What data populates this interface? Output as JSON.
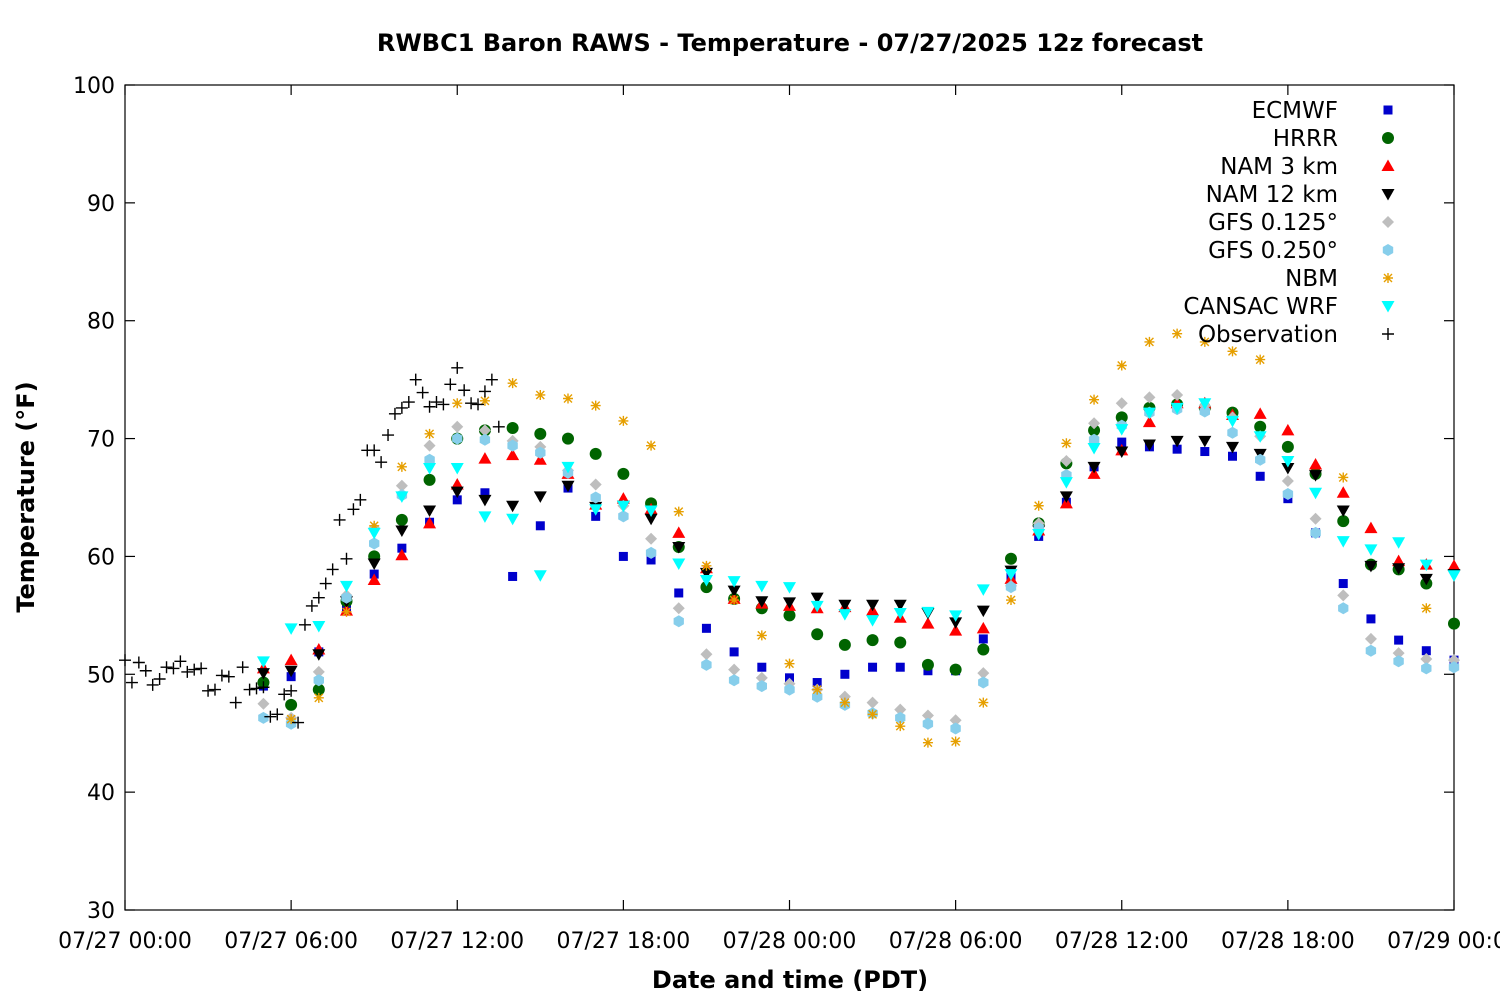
{
  "chart_data": {
    "type": "scatter",
    "title": "RWBC1 Baron RAWS - Temperature - 07/27/2025 12z forecast",
    "xlabel": "Date and time (PDT)",
    "ylabel": "Temperature (°F)",
    "ylim": [
      30,
      100
    ],
    "xlim_hours": [
      0,
      48
    ],
    "x_unit": "hours since 07/27 00:00 PDT",
    "yticks": [
      30,
      40,
      50,
      60,
      70,
      80,
      90,
      100
    ],
    "xticks": [
      {
        "h": 0,
        "label": "07/27 00:00"
      },
      {
        "h": 6,
        "label": "07/27 06:00"
      },
      {
        "h": 12,
        "label": "07/27 12:00"
      },
      {
        "h": 18,
        "label": "07/27 18:00"
      },
      {
        "h": 24,
        "label": "07/28 00:00"
      },
      {
        "h": 30,
        "label": "07/28 06:00"
      },
      {
        "h": 36,
        "label": "07/28 12:00"
      },
      {
        "h": 42,
        "label": "07/28 18:00"
      },
      {
        "h": 48,
        "label": "07/29 00:00"
      }
    ],
    "grid": false,
    "legend_position": "top-right",
    "series": [
      {
        "name": "ECMWF",
        "marker": "square",
        "color": "#0000cc",
        "x": [
          5,
          6,
          7,
          8,
          9,
          10,
          11,
          12,
          13,
          14,
          15,
          16,
          17,
          18,
          19,
          20,
          21,
          22,
          23,
          24,
          25,
          26,
          27,
          28,
          29,
          30,
          31,
          32,
          33,
          34,
          35,
          36,
          37,
          38,
          39,
          40,
          41,
          42,
          43,
          44,
          45,
          46,
          47,
          48
        ],
        "y": [
          49.0,
          49.8,
          51.9,
          55.7,
          58.5,
          60.7,
          62.9,
          64.8,
          65.4,
          58.3,
          62.6,
          65.8,
          63.4,
          60.0,
          59.7,
          56.9,
          53.9,
          51.9,
          50.6,
          49.7,
          49.3,
          50.0,
          50.6,
          50.6,
          50.3,
          50.3,
          53.0,
          58.3,
          61.7,
          64.6,
          67.6,
          69.7,
          69.3,
          69.1,
          68.9,
          68.5,
          66.8,
          64.9,
          62.0,
          57.7,
          54.7,
          52.9,
          52.0,
          51.2
        ]
      },
      {
        "name": "HRRR",
        "marker": "circle",
        "color": "#006400",
        "x": [
          5,
          6,
          7,
          8,
          9,
          10,
          11,
          12,
          13,
          14,
          15,
          16,
          17,
          18,
          19,
          20,
          21,
          22,
          23,
          24,
          25,
          26,
          27,
          28,
          29,
          30,
          31,
          32,
          33,
          34,
          35,
          36,
          37,
          38,
          39,
          40,
          41,
          42,
          43,
          44,
          45,
          46,
          47,
          48
        ],
        "y": [
          49.3,
          47.4,
          48.7,
          56.2,
          60.0,
          63.1,
          66.5,
          70.0,
          70.7,
          70.9,
          70.4,
          70.0,
          68.7,
          67.0,
          64.5,
          60.8,
          57.4,
          56.4,
          55.6,
          55.0,
          53.4,
          52.5,
          52.9,
          52.7,
          50.8,
          50.4,
          52.1,
          59.8,
          62.8,
          67.9,
          70.7,
          71.8,
          72.6,
          72.9,
          72.6,
          72.2,
          71.0,
          69.3,
          67.0,
          63.0,
          59.3,
          58.9,
          57.7,
          54.3
        ]
      },
      {
        "name": "NAM 3 km",
        "marker": "triangle-up",
        "color": "#ff0000",
        "x": [
          5,
          6,
          7,
          8,
          9,
          10,
          11,
          12,
          13,
          14,
          15,
          16,
          17,
          18,
          19,
          20,
          21,
          22,
          23,
          24,
          25,
          26,
          27,
          28,
          29,
          30,
          31,
          32,
          33,
          34,
          35,
          36,
          37,
          38,
          39,
          40,
          41,
          42,
          43,
          44,
          45,
          46,
          47,
          48
        ],
        "y": [
          50.5,
          51.2,
          52.1,
          55.4,
          58.0,
          60.1,
          62.8,
          66.1,
          68.3,
          68.6,
          68.2,
          67.0,
          64.4,
          64.9,
          64.0,
          62.0,
          59.0,
          56.4,
          56.0,
          55.8,
          55.6,
          55.7,
          55.4,
          54.8,
          54.3,
          53.7,
          53.9,
          58.1,
          62.2,
          64.5,
          67.0,
          69.0,
          71.4,
          73.0,
          73.0,
          72.0,
          72.1,
          70.7,
          67.8,
          65.4,
          62.4,
          59.6,
          59.3,
          59.2
        ]
      },
      {
        "name": "NAM 12 km",
        "marker": "triangle-down",
        "color": "#000000",
        "x": [
          5,
          6,
          7,
          8,
          9,
          10,
          11,
          12,
          13,
          14,
          15,
          16,
          17,
          18,
          19,
          20,
          21,
          22,
          23,
          24,
          25,
          26,
          27,
          28,
          29,
          30,
          31,
          32,
          33,
          34,
          35,
          36,
          37,
          38,
          39,
          40,
          41,
          42,
          43,
          44,
          45,
          46,
          47,
          48
        ],
        "y": [
          50.1,
          50.3,
          51.7,
          56.2,
          59.4,
          62.2,
          63.9,
          65.5,
          64.8,
          64.3,
          65.1,
          66.0,
          64.2,
          64.3,
          63.2,
          60.8,
          58.6,
          57.1,
          56.2,
          56.1,
          56.5,
          55.9,
          55.9,
          55.9,
          55.2,
          54.4,
          55.4,
          58.8,
          62.2,
          65.1,
          67.6,
          68.9,
          69.5,
          69.8,
          69.8,
          69.3,
          68.7,
          67.5,
          66.9,
          63.9,
          59.2,
          59.0,
          58.1,
          58.5
        ]
      },
      {
        "name": "GFS 0.125°",
        "marker": "diamond",
        "color": "#bebebe",
        "x": [
          5,
          6,
          7,
          8,
          9,
          10,
          11,
          12,
          13,
          14,
          15,
          16,
          17,
          18,
          19,
          20,
          21,
          22,
          23,
          24,
          25,
          26,
          27,
          28,
          29,
          30,
          31,
          32,
          33,
          34,
          35,
          36,
          37,
          38,
          39,
          40,
          41,
          42,
          43,
          44,
          45,
          46,
          47,
          48
        ],
        "y": [
          47.5,
          46.3,
          50.2,
          56.7,
          62.4,
          66.0,
          69.4,
          71.0,
          70.7,
          69.8,
          69.3,
          67.3,
          66.1,
          64.3,
          61.5,
          55.6,
          51.7,
          50.4,
          49.7,
          49.2,
          48.7,
          48.1,
          47.6,
          47.0,
          46.5,
          46.1,
          50.1,
          57.5,
          62.8,
          68.1,
          71.3,
          73.0,
          73.5,
          73.7,
          72.8,
          71.8,
          70.2,
          66.4,
          63.2,
          56.7,
          53.0,
          51.8,
          51.3,
          51.2
        ]
      },
      {
        "name": "GFS 0.250°",
        "marker": "hexagon",
        "color": "#87ceeb",
        "x": [
          5,
          6,
          7,
          8,
          9,
          10,
          11,
          12,
          13,
          14,
          15,
          16,
          17,
          18,
          19,
          20,
          21,
          22,
          23,
          24,
          25,
          26,
          27,
          28,
          29,
          30,
          31,
          32,
          33,
          34,
          35,
          36,
          37,
          38,
          39,
          40,
          41,
          42,
          43,
          44,
          45,
          46,
          47,
          48
        ],
        "y": [
          46.3,
          45.8,
          49.5,
          56.5,
          61.1,
          65.2,
          68.2,
          70.0,
          69.9,
          69.4,
          68.8,
          67.1,
          65.0,
          63.4,
          60.3,
          54.5,
          50.8,
          49.5,
          49.0,
          48.7,
          48.1,
          47.4,
          46.7,
          46.3,
          45.8,
          45.4,
          49.3,
          57.4,
          62.4,
          66.9,
          69.9,
          71.1,
          72.2,
          72.5,
          72.3,
          70.5,
          68.2,
          65.3,
          62.0,
          55.6,
          52.0,
          51.1,
          50.5,
          50.6
        ]
      },
      {
        "name": "NBM",
        "marker": "star",
        "color": "#e69f00",
        "x": [
          6,
          7,
          8,
          9,
          10,
          11,
          12,
          13,
          14,
          15,
          16,
          17,
          18,
          19,
          20,
          21,
          22,
          23,
          24,
          25,
          26,
          27,
          28,
          29,
          30,
          31,
          32,
          33,
          34,
          35,
          36,
          37,
          38,
          39,
          40,
          41,
          42,
          43,
          44,
          45,
          46,
          47,
          48
        ],
        "y": [
          46.2,
          48.0,
          55.3,
          62.6,
          67.6,
          70.4,
          73.0,
          73.2,
          74.7,
          73.7,
          73.4,
          72.8,
          71.5,
          69.4,
          63.8,
          59.2,
          56.3,
          53.3,
          50.9,
          48.7,
          47.6,
          46.6,
          45.6,
          44.2,
          44.3,
          47.6,
          56.3,
          64.3,
          69.6,
          73.3,
          76.2,
          78.2,
          78.9,
          78.2,
          77.4,
          76.7,
          null,
          null,
          66.7,
          null,
          null,
          55.6,
          null
        ]
      },
      {
        "name": "CANSAC WRF",
        "marker": "triangle-down",
        "color": "#00ffff",
        "x": [
          5,
          6,
          7,
          8,
          9,
          10,
          11,
          12,
          13,
          14,
          15,
          16,
          17,
          18,
          19,
          20,
          21,
          22,
          23,
          24,
          25,
          26,
          27,
          28,
          29,
          30,
          31,
          32,
          33,
          34,
          35,
          36,
          37,
          38,
          39,
          40,
          41,
          42,
          43,
          44,
          45,
          46,
          47,
          48
        ],
        "y": [
          51.1,
          53.9,
          54.1,
          57.5,
          62.0,
          65.1,
          67.5,
          67.5,
          63.4,
          63.2,
          58.4,
          67.6,
          64.0,
          64.3,
          63.9,
          59.4,
          58.0,
          57.9,
          57.5,
          57.4,
          55.8,
          55.1,
          54.6,
          55.2,
          55.3,
          55.0,
          57.2,
          58.5,
          61.9,
          66.3,
          69.2,
          70.8,
          72.2,
          72.6,
          73.0,
          71.5,
          70.2,
          68.1,
          65.4,
          61.3,
          60.6,
          61.2,
          59.3,
          58.4
        ]
      },
      {
        "name": "Observation",
        "marker": "plus",
        "color": "#000000",
        "x": [
          0,
          0.25,
          0.5,
          0.75,
          1,
          1.25,
          1.5,
          1.75,
          2,
          2.25,
          2.5,
          2.75,
          3,
          3.25,
          3.5,
          3.75,
          4,
          4.25,
          4.5,
          4.75,
          5,
          5.25,
          5.5,
          5.75,
          6,
          6.25,
          6.5,
          6.75,
          7,
          7.25,
          7.5,
          7.75,
          8,
          8.25,
          8.5,
          8.75,
          9,
          9.25,
          9.5,
          9.75,
          10,
          10.25,
          10.5,
          10.75,
          11,
          11.25,
          11.5,
          11.75,
          12,
          12.25,
          12.5,
          12.75,
          13,
          13.25,
          13.5,
          13.75,
          14,
          14.25,
          14.5,
          14.75,
          15,
          15.25,
          15.5,
          15.75,
          16
        ],
        "y": [
          51.2,
          49.3,
          51.0,
          50.3,
          49.1,
          49.6,
          50.6,
          50.5,
          51.1,
          50.2,
          50.4,
          50.5,
          48.6,
          48.7,
          49.9,
          49.8,
          47.6,
          50.6,
          48.7,
          48.8,
          48.9,
          46.4,
          46.6,
          48.3,
          48.6,
          45.9,
          54.2,
          55.8,
          56.5,
          57.7,
          58.9,
          63.1,
          59.8,
          64.0,
          64.8,
          69.0,
          69.0,
          68.0,
          70.3,
          72.1,
          72.6,
          73.1,
          75.0,
          73.9,
          72.7,
          73.1,
          72.9,
          74.6,
          76.0,
          74.1,
          73.0,
          72.9,
          74.0,
          75.0,
          71.0,
          null,
          null,
          null,
          null,
          null,
          null,
          null,
          null,
          null,
          null
        ]
      }
    ]
  }
}
